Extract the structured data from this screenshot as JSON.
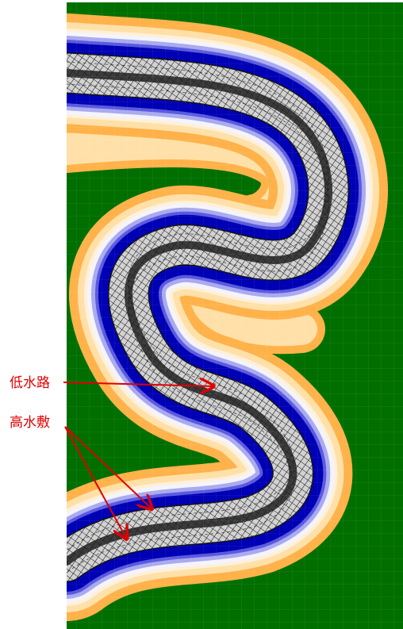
{
  "labels": {
    "low_channel": "低水路",
    "high_floodplain": "高水敷"
  },
  "colors": {
    "background_green": "#006f00",
    "bank_light": "#ffe0a8",
    "bank_orange": "#ffb24a",
    "bank_pale": "#fff0d8",
    "water_rim_white": "#f4f4ff",
    "water_rim_lavender": "#aaaaee",
    "water_rim_blue": "#5a5ae0",
    "water_blue": "#0000b4",
    "mesh_fill": "#d0d0d0",
    "mesh_line": "#141414",
    "thalweg": "#202020",
    "annotation_red": "#e00000"
  }
}
